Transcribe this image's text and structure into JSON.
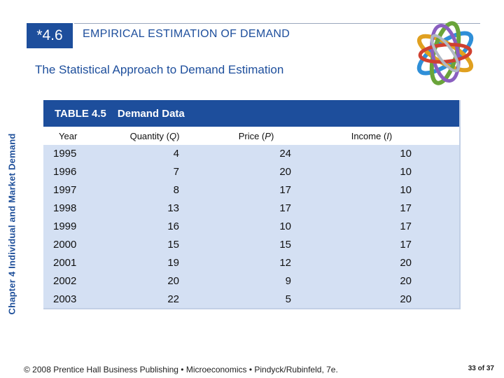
{
  "side_label": "Chapter 4  Individual and Market Demand",
  "section_number": "*4.6",
  "section_title": "EMPIRICAL ESTIMATION OF DEMAND",
  "subtitle": "The Statistical Approach to Demand Estimation",
  "table": {
    "number": "TABLE 4.5",
    "title": "Demand Data",
    "headers": {
      "year": "Year",
      "quantity_prefix": "Quantity (",
      "quantity_sym": "Q",
      "quantity_suffix": ")",
      "price_prefix": "Price (",
      "price_sym": "P",
      "price_suffix": ")",
      "income_prefix": "Income (",
      "income_sym": "I",
      "income_suffix": ")"
    },
    "rows": [
      {
        "year": "1995",
        "quantity": "4",
        "price": "24",
        "income": "10"
      },
      {
        "year": "1996",
        "quantity": "7",
        "price": "20",
        "income": "10"
      },
      {
        "year": "1997",
        "quantity": "8",
        "price": "17",
        "income": "10"
      },
      {
        "year": "1998",
        "quantity": "13",
        "price": "17",
        "income": "17"
      },
      {
        "year": "1999",
        "quantity": "16",
        "price": "10",
        "income": "17"
      },
      {
        "year": "2000",
        "quantity": "15",
        "price": "15",
        "income": "17"
      },
      {
        "year": "2001",
        "quantity": "19",
        "price": "12",
        "income": "20"
      },
      {
        "year": "2002",
        "quantity": "20",
        "price": "9",
        "income": "20"
      },
      {
        "year": "2003",
        "quantity": "22",
        "price": "5",
        "income": "20"
      }
    ]
  },
  "footer": "© 2008 Prentice Hall Business Publishing  •  Microeconomics  •  Pindyck/Rubinfeld, 7e.",
  "page": {
    "current": "33",
    "of": "of",
    "total": "37"
  },
  "logo_icon": "interlocking-rings-icon"
}
